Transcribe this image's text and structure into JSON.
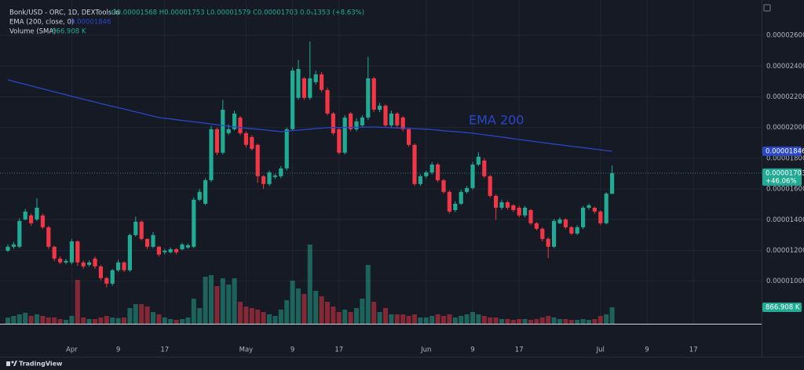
{
  "chart_data": {
    "type": "candlestick",
    "title": "Bonk/USD - ORC, 1D, DEXTools.io",
    "legend_values": "O0.00001568 H0.00001753 L0.00001579 C0.00001703 0.0₅1353 (+8.63%)",
    "indicators": [
      {
        "name": "EMA (200, close, 0)",
        "value_label": "0.00001846"
      },
      {
        "name": "Volume (SMA)",
        "value_label": "866.908 K"
      }
    ],
    "categories": [
      null,
      null,
      null,
      null,
      null,
      null,
      null,
      null,
      null,
      null,
      null,
      "Apr",
      null,
      null,
      null,
      null,
      null,
      null,
      null,
      "9",
      null,
      null,
      null,
      null,
      null,
      null,
      null,
      "17",
      null,
      null,
      null,
      null,
      null,
      null,
      null,
      null,
      null,
      null,
      null,
      null,
      null,
      "May",
      null,
      null,
      null,
      null,
      null,
      null,
      null,
      "9",
      null,
      null,
      null,
      null,
      null,
      null,
      null,
      "17",
      null,
      null,
      null,
      null,
      null,
      null,
      null,
      null,
      null,
      null,
      null,
      null,
      null,
      null,
      "Jun",
      null,
      null,
      null,
      null,
      null,
      null,
      null,
      "9",
      null,
      null,
      null,
      null,
      null,
      null,
      null,
      "17",
      null,
      null,
      null,
      null,
      null,
      null,
      null,
      null,
      null,
      null,
      null,
      null,
      null,
      "Jul",
      null,
      null,
      null,
      null,
      null,
      null,
      null,
      "9",
      null,
      null,
      null,
      null,
      null,
      null,
      null,
      "17",
      null,
      null,
      null,
      null,
      null,
      null,
      null,
      null,
      null,
      null,
      null
    ],
    "open": [
      1.198e-05,
      1.224e-05,
      1.224e-05,
      1.402e-05,
      1.428e-05,
      1.402e-05,
      1.428e-05,
      1.351e-05,
      1.224e-05,
      1.147e-05,
      1.122e-05,
      1.122e-05,
      1.259e-05,
      1.122e-05,
      1.107e-05,
      1.147e-05,
      1.096e-05,
      1.02e-05,
      9.84e-06,
      1.071e-05,
      1.122e-05,
      1.071e-05,
      1.3e-05,
      1.387e-05,
      1.275e-05,
      1.224e-05,
      1.224e-05,
      1.188e-05,
      1.188e-05,
      1.208e-05,
      1.208e-05,
      1.219e-05,
      1.224e-05,
      1.53e-05,
      1.504e-05,
      1.657e-05,
      1.989e-05,
      1.836e-05,
      1.963e-05,
      1.989e-05,
      2.065e-05,
      1.963e-05,
      1.938e-05,
      1.887e-05,
      1.683e-05,
      1.632e-05,
      1.678e-05,
      1.683e-05,
      1.734e-05,
      1.989e-05,
      2.193e-05,
      2.32e-05,
      2.193e-05,
      2.295e-05,
      2.346e-05,
      2.244e-05,
      2.091e-05,
      1.989e-05,
      1.836e-05,
      2.091e-05,
      1.989e-05,
      2.014e-05,
      2.065e-05,
      2.32e-05,
      2.116e-05,
      2.142e-05,
      2.014e-05,
      2.091e-05,
      2.065e-05,
      1.989e-05,
      1.887e-05,
      1.632e-05,
      1.683e-05,
      1.708e-05,
      1.759e-05,
      1.657e-05,
      1.581e-05,
      1.463e-05,
      1.504e-05,
      1.581e-05,
      1.606e-05,
      1.759e-05,
      1.785e-05,
      1.683e-05,
      1.555e-05,
      1.478e-05,
      1.514e-05,
      1.494e-05,
      1.478e-05,
      1.428e-05,
      1.463e-05,
      1.377e-05,
      1.341e-05,
      1.275e-05,
      1.224e-05,
      1.377e-05,
      1.402e-05,
      1.351e-05,
      1.31e-05,
      1.351e-05,
      1.478e-05,
      1.478e-05,
      1.453e-05,
      1.377e-05,
      1.568e-05,
      null,
      null,
      null,
      null,
      null,
      null,
      null,
      null,
      null,
      null,
      null,
      null,
      null,
      null,
      null,
      null,
      null,
      null,
      null,
      null,
      null,
      null,
      null,
      null,
      null
    ],
    "high": [
      1.24e-05,
      1.255e-05,
      1.41e-05,
      1.47e-05,
      1.44e-05,
      1.54e-05,
      1.44e-05,
      1.36e-05,
      1.23e-05,
      1.16e-05,
      1.145e-05,
      1.275e-05,
      1.265e-05,
      1.135e-05,
      1.135e-05,
      1.16e-05,
      1.105e-05,
      1.03e-05,
      1.08e-05,
      1.14e-05,
      1.13e-05,
      1.31e-05,
      1.42e-05,
      1.395e-05,
      1.28e-05,
      1.32e-05,
      1.23e-05,
      1.21e-05,
      1.22e-05,
      1.215e-05,
      1.25e-05,
      1.245e-05,
      1.545e-05,
      1.6e-05,
      1.67e-05,
      2.01e-05,
      2e-05,
      2.18e-05,
      2.02e-05,
      2.11e-05,
      2.075e-05,
      1.975e-05,
      1.95e-05,
      1.895e-05,
      1.69e-05,
      1.72e-05,
      1.7e-05,
      1.75e-05,
      2e-05,
      2.39e-05,
      2.44e-05,
      2.33e-05,
      2.56e-05,
      2.37e-05,
      2.36e-05,
      2.26e-05,
      2.1e-05,
      2e-05,
      2.08e-05,
      2.1e-05,
      2.06e-05,
      2.08e-05,
      2.46e-05,
      2.33e-05,
      2.16e-05,
      2.15e-05,
      2.11e-05,
      2.1e-05,
      2.075e-05,
      2e-05,
      1.895e-05,
      1.695e-05,
      1.72e-05,
      1.775e-05,
      1.77e-05,
      1.665e-05,
      1.59e-05,
      1.52e-05,
      1.595e-05,
      1.62e-05,
      1.775e-05,
      1.84e-05,
      1.8e-05,
      1.69e-05,
      1.565e-05,
      1.53e-05,
      1.525e-05,
      1.5e-05,
      1.49e-05,
      1.49e-05,
      1.47e-05,
      1.385e-05,
      1.35e-05,
      1.285e-05,
      1.405e-05,
      1.415e-05,
      1.41e-05,
      1.36e-05,
      1.365e-05,
      1.49e-05,
      1.505e-05,
      1.485e-05,
      1.46e-05,
      1.58e-05,
      1.753e-05,
      null,
      null,
      null,
      null,
      null,
      null,
      null,
      null,
      null,
      null,
      null,
      null,
      null,
      null,
      null,
      null,
      null,
      null,
      null,
      null,
      null,
      null,
      null,
      null,
      null
    ],
    "low": [
      1.19e-05,
      1.21e-05,
      1.215e-05,
      1.395e-05,
      1.36e-05,
      1.39e-05,
      1.34e-05,
      1.21e-05,
      1.13e-05,
      1.11e-05,
      1.11e-05,
      1.11e-05,
      1.1e-05,
      1.08e-05,
      1.095e-05,
      1.08e-05,
      1.005e-05,
      9.6e-06,
      9.7e-06,
      1.06e-05,
      1.06e-05,
      1.06e-05,
      1.29e-05,
      1.265e-05,
      1.21e-05,
      1.215e-05,
      1.16e-05,
      1.175e-05,
      1.18e-05,
      1.175e-05,
      1.2e-05,
      1.21e-05,
      1.215e-05,
      1.52e-05,
      1.495e-05,
      1.645e-05,
      1.82e-05,
      1.825e-05,
      1.95e-05,
      1.98e-05,
      1.95e-05,
      1.87e-05,
      1.85e-05,
      1.64e-05,
      1.6e-05,
      1.62e-05,
      1.665e-05,
      1.67e-05,
      1.72e-05,
      1.98e-05,
      2.18e-05,
      2.18e-05,
      2.18e-05,
      2.28e-05,
      2.23e-05,
      2.08e-05,
      1.95e-05,
      1.825e-05,
      1.825e-05,
      1.975e-05,
      1.975e-05,
      2e-05,
      2.05e-05,
      2.1e-05,
      2.1e-05,
      2e-05,
      2e-05,
      2e-05,
      1.975e-05,
      1.875e-05,
      1.62e-05,
      1.62e-05,
      1.67e-05,
      1.695e-05,
      1.645e-05,
      1.57e-05,
      1.44e-05,
      1.45e-05,
      1.495e-05,
      1.57e-05,
      1.595e-05,
      1.75e-05,
      1.67e-05,
      1.545e-05,
      1.4e-05,
      1.465e-05,
      1.465e-05,
      1.45e-05,
      1.415e-05,
      1.415e-05,
      1.365e-05,
      1.33e-05,
      1.26e-05,
      1.15e-05,
      1.215e-05,
      1.37e-05,
      1.34e-05,
      1.3e-05,
      1.3e-05,
      1.34e-05,
      1.465e-05,
      1.44e-05,
      1.365e-05,
      1.37e-05,
      1.579e-05,
      null,
      null,
      null,
      null,
      null,
      null,
      null,
      null,
      null,
      null,
      null,
      null,
      null,
      null,
      null,
      null,
      null,
      null,
      null,
      null,
      null,
      null,
      null,
      null,
      null
    ],
    "close": [
      1.224e-05,
      1.239e-05,
      1.392e-05,
      1.453e-05,
      1.377e-05,
      1.478e-05,
      1.351e-05,
      1.224e-05,
      1.147e-05,
      1.122e-05,
      1.132e-05,
      1.259e-05,
      1.122e-05,
      1.096e-05,
      1.122e-05,
      1.096e-05,
      1.02e-05,
      9.84e-06,
      1.071e-05,
      1.122e-05,
      1.071e-05,
      1.3e-05,
      1.387e-05,
      1.275e-05,
      1.224e-05,
      1.3e-05,
      1.173e-05,
      1.198e-05,
      1.208e-05,
      1.188e-05,
      1.239e-05,
      1.234e-05,
      1.53e-05,
      1.581e-05,
      1.657e-05,
      1.989e-05,
      1.836e-05,
      2.116e-05,
      1.989e-05,
      2.091e-05,
      1.963e-05,
      1.887e-05,
      1.861e-05,
      1.683e-05,
      1.632e-05,
      1.708e-05,
      1.688e-05,
      1.734e-05,
      1.989e-05,
      2.371e-05,
      2.381e-05,
      2.193e-05,
      2.32e-05,
      2.346e-05,
      2.244e-05,
      2.091e-05,
      1.963e-05,
      1.836e-05,
      2.065e-05,
      1.989e-05,
      2.04e-05,
      2.065e-05,
      2.32e-05,
      2.116e-05,
      2.142e-05,
      2.014e-05,
      2.091e-05,
      2.014e-05,
      1.989e-05,
      1.887e-05,
      1.632e-05,
      1.683e-05,
      1.708e-05,
      1.759e-05,
      1.657e-05,
      1.581e-05,
      1.453e-05,
      1.504e-05,
      1.581e-05,
      1.606e-05,
      1.759e-05,
      1.81e-05,
      1.683e-05,
      1.555e-05,
      1.478e-05,
      1.514e-05,
      1.478e-05,
      1.463e-05,
      1.428e-05,
      1.478e-05,
      1.377e-05,
      1.341e-05,
      1.275e-05,
      1.224e-05,
      1.392e-05,
      1.402e-05,
      1.351e-05,
      1.31e-05,
      1.351e-05,
      1.478e-05,
      1.494e-05,
      1.453e-05,
      1.377e-05,
      1.57e-05,
      1.703e-05,
      null,
      null,
      null,
      null,
      null,
      null,
      null,
      null,
      null,
      null,
      null,
      null,
      null,
      null,
      null,
      null,
      null,
      null,
      null,
      null,
      null,
      null,
      null,
      null,
      null
    ],
    "up_color": "#22ab94",
    "down_color": "#f23645",
    "series": [
      {
        "name": "EMA 200",
        "color": "#2a46c9",
        "values": [
          2.31e-05,
          2.3e-05,
          2.291e-05,
          2.281e-05,
          2.271e-05,
          2.261e-05,
          2.252e-05,
          2.242e-05,
          2.232e-05,
          2.222e-05,
          2.213e-05,
          2.203e-05,
          2.193e-05,
          2.184e-05,
          2.175e-05,
          2.166e-05,
          2.156e-05,
          2.147e-05,
          2.138e-05,
          2.129e-05,
          2.12e-05,
          2.111e-05,
          2.102e-05,
          2.093e-05,
          2.083e-05,
          2.074e-05,
          2.065e-05,
          2.06e-05,
          2.056e-05,
          2.051e-05,
          2.046e-05,
          2.042e-05,
          2.037e-05,
          2.032e-05,
          2.028e-05,
          2.023e-05,
          2.018e-05,
          2.013e-05,
          2.009e-05,
          2.004e-05,
          2e-05,
          1.996e-05,
          1.992e-05,
          1.989e-05,
          1.985e-05,
          1.981e-05,
          1.977e-05,
          1.973e-05,
          1.976e-05,
          1.98e-05,
          1.983e-05,
          1.986e-05,
          1.989e-05,
          1.993e-05,
          1.996e-05,
          1.999e-05,
          2e-05,
          2e-05,
          2.001e-05,
          2.001e-05,
          2.002e-05,
          2.003e-05,
          2.003e-05,
          2.004e-05,
          2.002e-05,
          2.001e-05,
          1.999e-05,
          1.997e-05,
          1.996e-05,
          1.994e-05,
          1.992e-05,
          1.991e-05,
          1.989e-05,
          1.986e-05,
          1.983e-05,
          1.979e-05,
          1.976e-05,
          1.973e-05,
          1.97e-05,
          1.966e-05,
          1.963e-05,
          1.958e-05,
          1.953e-05,
          1.948e-05,
          1.943e-05,
          1.938e-05,
          1.933e-05,
          1.927e-05,
          1.922e-05,
          1.917e-05,
          1.912e-05,
          1.907e-05,
          1.902e-05,
          1.897e-05,
          1.892e-05,
          1.888e-05,
          1.883e-05,
          1.878e-05,
          1.874e-05,
          1.869e-05,
          1.864e-05,
          1.86e-05,
          1.855e-05,
          1.85e-05,
          1.846e-05,
          null,
          null,
          null,
          null,
          null,
          null,
          null,
          null,
          null,
          null,
          null,
          null,
          null,
          null,
          null,
          null,
          null,
          null,
          null,
          null,
          null,
          null,
          null,
          null,
          null
        ]
      }
    ],
    "volume": {
      "values": [
        330400,
        413000,
        495600,
        578200,
        413000,
        495600,
        413000,
        330400,
        330400,
        247800,
        206500,
        413000,
        2312800,
        330400,
        247800,
        247800,
        330400,
        413000,
        330400,
        289100,
        330400,
        826000,
        1032500,
        1032500,
        908600,
        619500,
        495600,
        330400,
        247800,
        206500,
        247800,
        330400,
        1321600,
        826000,
        2478000,
        2560600,
        1982400,
        2395400,
        2065000,
        2395400,
        1156400,
        908600,
        826000,
        743400,
        619500,
        495600,
        413000,
        743400,
        1239000,
        2271500,
        1858500,
        1569400,
        4171300,
        1734600,
        1445500,
        1156400,
        908600,
        619500,
        743400,
        619500,
        826000,
        1321600,
        3097500,
        1156400,
        619500,
        826000,
        495600,
        495600,
        495600,
        413000,
        495600,
        330400,
        330400,
        413000,
        495600,
        413000,
        495600,
        330400,
        413000,
        495600,
        619500,
        495600,
        413000,
        330400,
        330400,
        247800,
        247800,
        206500,
        247800,
        247800,
        206500,
        247800,
        330400,
        413000,
        330400,
        247800,
        247800,
        206500,
        206500,
        247800,
        206500,
        247800,
        413000,
        495600,
        866908,
        null,
        null,
        null,
        null,
        null,
        null,
        null,
        null,
        null,
        null,
        null,
        null,
        null,
        null,
        null,
        null,
        null,
        null,
        null,
        null,
        null,
        null,
        null,
        null,
        null
      ],
      "last_label": "866.908 K",
      "color_alpha": 0.5
    },
    "last_price_label": "0.00001703",
    "change_label": "+46.06%",
    "ylim": [
      7.23e-06,
      2.789e-05
    ],
    "yticks": [
      {
        "value": 2.6e-05,
        "label": "0.00002600"
      },
      {
        "value": 2.4e-05,
        "label": "0.00002400"
      },
      {
        "value": 2.2e-05,
        "label": "0.00002200"
      },
      {
        "value": 2e-05,
        "label": "0.00002000"
      },
      {
        "value": 1.8e-05,
        "label": "0.00001800"
      },
      {
        "value": 1.6e-05,
        "label": "0.00001600"
      },
      {
        "value": 1.4e-05,
        "label": "0.00001400"
      },
      {
        "value": 1.2e-05,
        "label": "0.00001200"
      },
      {
        "value": 1e-05,
        "label": "0.00001000"
      }
    ],
    "grid": true,
    "footer": "TradingView"
  }
}
